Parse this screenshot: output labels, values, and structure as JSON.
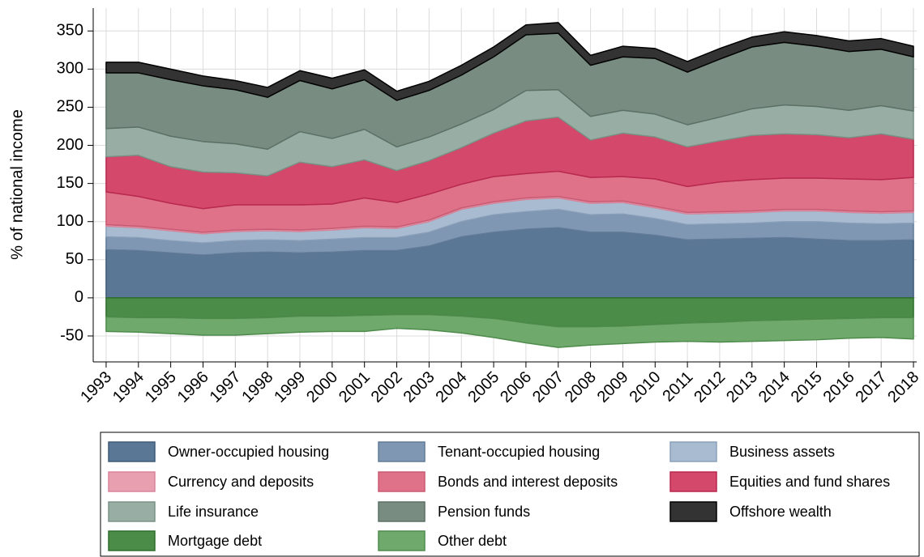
{
  "chart_data": {
    "type": "stacked-area",
    "y_label": "% of national income",
    "x": [
      1993,
      1994,
      1995,
      1996,
      1997,
      1998,
      1999,
      2000,
      2001,
      2002,
      2003,
      2004,
      2005,
      2006,
      2007,
      2008,
      2009,
      2010,
      2011,
      2012,
      2013,
      2014,
      2015,
      2016,
      2017,
      2018
    ],
    "xlim": [
      1992.6,
      2018.1
    ],
    "xticks": [
      1993,
      1994,
      1995,
      1996,
      1997,
      1998,
      1999,
      2000,
      2001,
      2002,
      2003,
      2004,
      2005,
      2006,
      2007,
      2008,
      2009,
      2010,
      2011,
      2012,
      2013,
      2014,
      2015,
      2016,
      2017,
      2018
    ],
    "ylim": [
      -84,
      380
    ],
    "yticks": [
      -50,
      0,
      50,
      100,
      150,
      200,
      250,
      300,
      350
    ],
    "grid": true,
    "legend": "bottom",
    "series": [
      {
        "name": "Owner-occupied housing",
        "color": "#5a7896",
        "edgecolor": "#3e5a78",
        "values": [
          63,
          62,
          59,
          56,
          59,
          60,
          59,
          60,
          62,
          62,
          68,
          80,
          86,
          90,
          92,
          86,
          86,
          82,
          76,
          77,
          78,
          79,
          77,
          75,
          75,
          76
        ]
      },
      {
        "name": "Tenant-occupied housing",
        "color": "#7f97b2",
        "edgecolor": "#627b98",
        "values": [
          17,
          17,
          16,
          16,
          16,
          16,
          16,
          17,
          17,
          17,
          18,
          20,
          23,
          23,
          24,
          23,
          24,
          22,
          20,
          20,
          20,
          21,
          23,
          23,
          22,
          22
        ]
      },
      {
        "name": "Business assets",
        "color": "#a9bbd0",
        "edgecolor": "#8aa0ba",
        "values": [
          14,
          13,
          13,
          12,
          12,
          12,
          12,
          12,
          13,
          12,
          14,
          16,
          15,
          16,
          15,
          15,
          15,
          14,
          14,
          14,
          14,
          14,
          14,
          14,
          14,
          14
        ]
      },
      {
        "name": "Currency and deposits",
        "color": "#e8a0b1",
        "edgecolor": "#d8849a",
        "values": [
          2,
          2,
          2,
          2,
          2,
          2,
          2,
          2,
          2,
          2,
          2,
          2,
          2,
          2,
          2,
          2,
          2,
          2,
          2,
          2,
          2,
          2,
          2,
          2,
          2,
          2
        ]
      },
      {
        "name": "Bonds and interest deposits",
        "color": "#df7289",
        "edgecolor": "#c85a74",
        "values": [
          43,
          39,
          34,
          31,
          33,
          32,
          33,
          32,
          37,
          32,
          34,
          31,
          33,
          32,
          33,
          32,
          32,
          36,
          34,
          39,
          41,
          41,
          41,
          42,
          42,
          44
        ]
      },
      {
        "name": "Equities and fund shares",
        "color": "#d4496b",
        "edgecolor": "#b8284f",
        "values": [
          46,
          54,
          48,
          48,
          42,
          38,
          56,
          49,
          50,
          42,
          44,
          48,
          57,
          69,
          71,
          49,
          57,
          55,
          52,
          54,
          58,
          58,
          57,
          54,
          60,
          50
        ]
      },
      {
        "name": "Life insurance",
        "color": "#98aea4",
        "edgecolor": "#7a9286",
        "values": [
          37,
          37,
          40,
          40,
          38,
          35,
          40,
          37,
          40,
          31,
          31,
          31,
          31,
          40,
          36,
          31,
          30,
          30,
          29,
          31,
          35,
          38,
          37,
          36,
          37,
          37
        ]
      },
      {
        "name": "Pension funds",
        "color": "#788c82",
        "edgecolor": "#5c7066",
        "values": [
          73,
          71,
          74,
          73,
          71,
          68,
          67,
          65,
          65,
          61,
          61,
          64,
          69,
          73,
          74,
          67,
          70,
          73,
          69,
          76,
          81,
          82,
          79,
          77,
          74,
          71
        ]
      },
      {
        "name": "Offshore wealth",
        "color": "#333333",
        "edgecolor": "#000000",
        "values": [
          14,
          14,
          14,
          13,
          12,
          13,
          13,
          14,
          13,
          12,
          12,
          13,
          13,
          13,
          14,
          13,
          14,
          13,
          14,
          14,
          13,
          14,
          14,
          14,
          14,
          14
        ]
      },
      {
        "name": "Mortgage debt",
        "color": "#4a8c48",
        "edgecolor": "#2e6e2c",
        "values": [
          -25,
          -26,
          -26,
          -27,
          -27,
          -26,
          -24,
          -24,
          -23,
          -22,
          -22,
          -24,
          -27,
          -33,
          -38,
          -38,
          -37,
          -35,
          -33,
          -32,
          -30,
          -29,
          -28,
          -27,
          -26,
          -26
        ]
      },
      {
        "name": "Other debt",
        "color": "#6fa96c",
        "edgecolor": "#4f8c4c",
        "values": [
          -19,
          -19,
          -21,
          -22,
          -22,
          -21,
          -21,
          -20,
          -21,
          -18,
          -20,
          -22,
          -25,
          -26,
          -27,
          -24,
          -23,
          -23,
          -24,
          -26,
          -27,
          -27,
          -27,
          -26,
          -26,
          -28
        ]
      }
    ]
  }
}
